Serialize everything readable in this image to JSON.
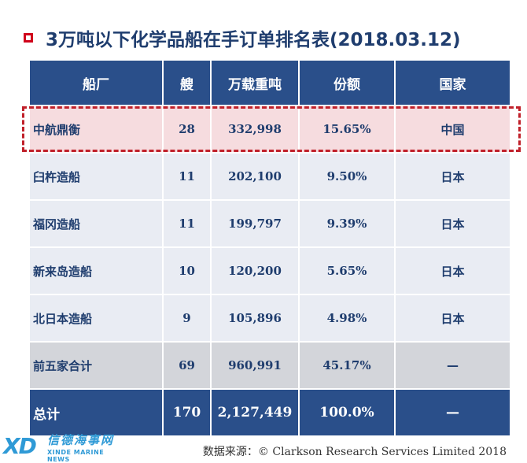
{
  "title": "3万吨以下化学品船在手订单排名表(2018.03.12)",
  "colors": {
    "accent": "#d0021b",
    "header_bg": "#2a4f8a",
    "title_color": "#1f3d6e"
  },
  "table": {
    "headers": [
      "船厂",
      "艘",
      "万载重吨",
      "份额",
      "国家"
    ],
    "rows": [
      {
        "name": "中航鼎衡",
        "ships": "28",
        "dwt": "332,998",
        "share": "15.65%",
        "country": "中国"
      },
      {
        "name": "臼杵造船",
        "ships": "11",
        "dwt": "202,100",
        "share": "9.50%",
        "country": "日本"
      },
      {
        "name": "福冈造船",
        "ships": "11",
        "dwt": "199,797",
        "share": "9.39%",
        "country": "日本"
      },
      {
        "name": "新来岛造船",
        "ships": "10",
        "dwt": "120,200",
        "share": "5.65%",
        "country": "日本"
      },
      {
        "name": "北日本造船",
        "ships": "9",
        "dwt": "105,896",
        "share": "4.98%",
        "country": "日本"
      },
      {
        "name": "前五家合计",
        "ships": "69",
        "dwt": "960,991",
        "share": "45.17%",
        "country": "—"
      },
      {
        "name": "总计",
        "ships": "170",
        "dwt": "2,127,449",
        "share": "100.0%",
        "country": "—"
      }
    ]
  },
  "source": "数据来源：© Clarkson Research Services Limited 2018",
  "watermark": {
    "mark": "XD",
    "cn": "信德海事网",
    "en": "XINDE MARINE NEWS"
  }
}
